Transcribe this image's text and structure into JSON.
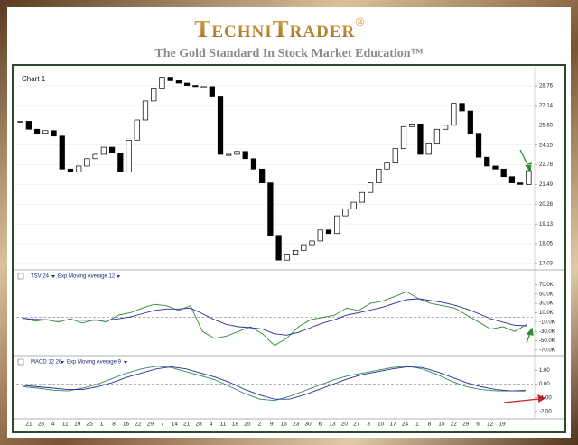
{
  "header": {
    "brand": "TechniTrader",
    "registered": "®",
    "tagline": "The Gold Standard In Stock Market Education™"
  },
  "chart_data": [
    {
      "type": "candlestick",
      "title": "Chart 1",
      "log_scale": true,
      "grid": true,
      "ylim": [
        16.8,
        30.1
      ],
      "yticks": [
        28.76,
        27.14,
        {
          "value": 25.6,
          "label": "25.60"
        },
        24.15,
        22.78,
        21.49,
        20.28,
        19.13,
        18.05,
        17.03
      ],
      "up_color": "#ffffff",
      "down_color": "#000000",
      "values": [
        25.9,
        25.3,
        25.0,
        25.2,
        24.8,
        22.5,
        22.3,
        22.7,
        23.2,
        23.5,
        24.0,
        23.6,
        22.3,
        24.5,
        26.0,
        27.5,
        28.5,
        29.5,
        29.2,
        29.0,
        28.8,
        28.7,
        28.7,
        27.9,
        23.5,
        23.5,
        23.7,
        23.2,
        22.5,
        21.6,
        18.5,
        17.2,
        17.5,
        17.7,
        18.0,
        18.2,
        18.8,
        18.6,
        19.6,
        20.0,
        20.4,
        21.0,
        21.6,
        22.5,
        22.9,
        23.9,
        25.5,
        25.7,
        23.5,
        24.3,
        25.3,
        25.6,
        27.3,
        26.7,
        25.0,
        23.3,
        22.7,
        22.5,
        22.0,
        21.6,
        21.5,
        22.4
      ]
    },
    {
      "type": "line",
      "ylim": [
        -78000,
        96000
      ],
      "reference_line": 0,
      "yticks": [
        {
          "value": 70000,
          "label": "70.0K"
        },
        {
          "value": 50000,
          "label": "50.0K"
        },
        {
          "value": 30000,
          "label": "30.0K"
        },
        {
          "value": 10000,
          "label": "10.0K"
        },
        {
          "value": -10000,
          "label": "-10.0K"
        },
        {
          "value": -30000,
          "label": "-30.0K"
        },
        {
          "value": -50000,
          "label": "-50.0K"
        },
        {
          "value": -70000,
          "label": "-70.0K"
        }
      ],
      "series": [
        {
          "name": "TSV 24",
          "color": "#2e8b2e",
          "values": [
            0,
            -8000,
            -5000,
            -10000,
            -3000,
            -12000,
            -5000,
            -10000,
            5000,
            10000,
            20000,
            28000,
            25000,
            15000,
            25000,
            -30000,
            -45000,
            -40000,
            -30000,
            -20000,
            -35000,
            -60000,
            -45000,
            -20000,
            -5000,
            0,
            5000,
            20000,
            15000,
            30000,
            35000,
            45000,
            55000,
            40000,
            30000,
            25000,
            20000,
            5000,
            -10000,
            -25000,
            -20000,
            -30000,
            -15000
          ]
        },
        {
          "name": "Exp Moving Average 12",
          "color": "#2b2ba0",
          "values": [
            -2000,
            -4000,
            -5000,
            -6000,
            -5000,
            -6000,
            -6000,
            -6000,
            -3000,
            1000,
            8000,
            15000,
            18000,
            18000,
            20000,
            8000,
            -5000,
            -15000,
            -20000,
            -22000,
            -25000,
            -35000,
            -38000,
            -32000,
            -22000,
            -12000,
            -5000,
            5000,
            10000,
            16000,
            22000,
            30000,
            38000,
            40000,
            36000,
            32000,
            26000,
            18000,
            8000,
            -3000,
            -10000,
            -17000,
            -18000
          ]
        }
      ]
    },
    {
      "type": "line",
      "ylim": [
        -2.4,
        1.87
      ],
      "reference_line": 0,
      "yticks": [
        {
          "value": 1,
          "label": "1.00"
        },
        {
          "value": 0,
          "label": "0.00"
        },
        {
          "value": -1,
          "label": "-1.00"
        },
        {
          "value": -2,
          "label": "-2.00"
        }
      ],
      "series": [
        {
          "name": "MACD 12 26",
          "color": "#2e8b57",
          "values": [
            -0.2,
            -0.3,
            -0.45,
            -0.5,
            -0.3,
            0.0,
            0.4,
            0.8,
            1.1,
            1.3,
            1.2,
            0.9,
            0.6,
            0.3,
            -0.2,
            -0.7,
            -1.1,
            -1.2,
            -0.9,
            -0.5,
            -0.1,
            0.3,
            0.6,
            0.8,
            1.0,
            1.2,
            1.3,
            1.1,
            0.7,
            0.2,
            -0.2,
            -0.4,
            -0.5,
            -0.5,
            -0.45
          ]
        },
        {
          "name": "Exp Moving Average 9",
          "color": "#2b2ba0",
          "values": [
            -0.1,
            -0.2,
            -0.3,
            -0.4,
            -0.4,
            -0.2,
            0.1,
            0.5,
            0.8,
            1.1,
            1.25,
            1.1,
            0.8,
            0.5,
            0.1,
            -0.4,
            -0.8,
            -1.1,
            -1.1,
            -0.8,
            -0.4,
            0.0,
            0.4,
            0.7,
            0.9,
            1.1,
            1.25,
            1.2,
            0.9,
            0.5,
            0.1,
            -0.2,
            -0.4,
            -0.5,
            -0.5
          ]
        }
      ],
      "date_labels": [
        21,
        28,
        4,
        11,
        19,
        25,
        1,
        8,
        16,
        22,
        29,
        7,
        14,
        21,
        28,
        4,
        11,
        18,
        25,
        2,
        9,
        16,
        23,
        30,
        6,
        13,
        20,
        27,
        3,
        10,
        17,
        24,
        1,
        8,
        15,
        22,
        29,
        6,
        12,
        19
      ]
    }
  ]
}
